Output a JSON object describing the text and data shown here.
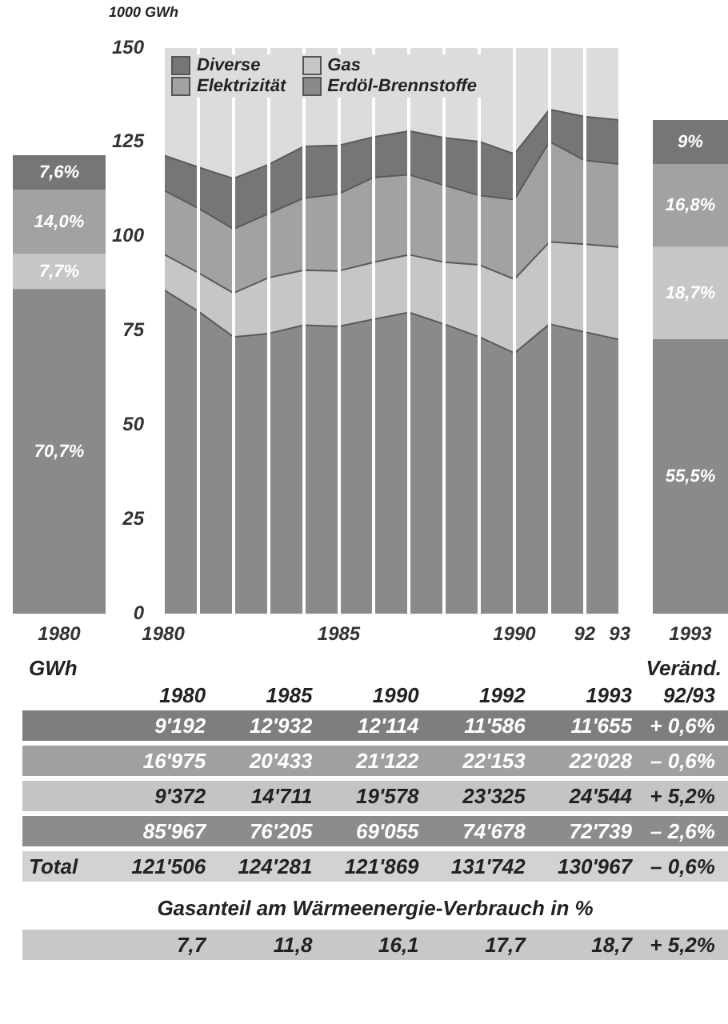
{
  "chart_data": [
    {
      "type": "bar",
      "stacked": true,
      "categories": [
        "1980"
      ],
      "tick_labels": "x",
      "series": [
        {
          "color": "#8a8a8a",
          "values": [
            70.7
          ],
          "value_labels": [
            "70,7%"
          ]
        },
        {
          "color": "#c6c6c6",
          "values": [
            7.7
          ],
          "value_labels": [
            "7,7%"
          ]
        },
        {
          "color": "#a2a2a2",
          "values": [
            14.0
          ],
          "value_labels": [
            "14,0%"
          ]
        },
        {
          "color": "#767676",
          "values": [
            7.6
          ],
          "value_labels": [
            "7,6%"
          ]
        }
      ]
    },
    {
      "type": "area",
      "stacked": true,
      "ylabel": "1000 GWh",
      "legend": "top left",
      "grid": "x",
      "x": [
        1980,
        1981,
        1982,
        1983,
        1984,
        1985,
        1986,
        1987,
        1988,
        1989,
        1990,
        1991,
        1992,
        1993
      ],
      "xlim": [
        1980,
        1993
      ],
      "xticks": [
        1980,
        {
          "value": 1981,
          "label": null
        },
        {
          "value": 1982,
          "label": null
        },
        {
          "value": 1983,
          "label": null
        },
        {
          "value": 1984,
          "label": null
        },
        1985,
        {
          "value": 1986,
          "label": null
        },
        {
          "value": 1987,
          "label": null
        },
        {
          "value": 1988,
          "label": null
        },
        {
          "value": 1989,
          "label": null
        },
        1990,
        {
          "value": 1991,
          "label": null
        },
        {
          "value": 1992,
          "label": "92"
        },
        {
          "value": 1993,
          "label": "93"
        }
      ],
      "ylim": [
        0,
        150
      ],
      "yticks": [
        0,
        25,
        50,
        75,
        100,
        125,
        150
      ],
      "series": [
        {
          "name": "Erdöl-Brennstoffe",
          "color": "#8a8a8a",
          "values": [
            86.0,
            80.2,
            73.4,
            74.3,
            76.5,
            76.2,
            78.1,
            79.9,
            76.8,
            73.4,
            69.1,
            76.8,
            74.7,
            72.7
          ]
        },
        {
          "name": "Gas",
          "color": "#c6c6c6",
          "values": [
            9.4,
            10.2,
            11.6,
            14.8,
            14.6,
            14.7,
            15.1,
            15.3,
            16.4,
            19.1,
            19.6,
            21.8,
            23.3,
            24.5
          ]
        },
        {
          "name": "Elektrizität",
          "color": "#a2a2a2",
          "values": [
            17.0,
            17.1,
            17.0,
            17.0,
            19.1,
            20.4,
            22.5,
            21.2,
            20.4,
            18.4,
            21.1,
            26.6,
            22.2,
            22.0
          ]
        },
        {
          "name": "Diverse",
          "color": "#767676",
          "values": [
            9.2,
            10.9,
            13.4,
            13.0,
            13.7,
            12.9,
            10.7,
            11.6,
            12.6,
            14.3,
            12.1,
            8.5,
            11.6,
            11.7
          ]
        }
      ]
    },
    {
      "type": "bar",
      "stacked": true,
      "categories": [
        "1993"
      ],
      "tick_labels": "x",
      "series": [
        {
          "color": "#8a8a8a",
          "values": [
            55.5
          ],
          "value_labels": [
            "55,5%"
          ]
        },
        {
          "color": "#c6c6c6",
          "values": [
            18.7
          ],
          "value_labels": [
            "18,7%"
          ]
        },
        {
          "color": "#a2a2a2",
          "values": [
            16.8
          ],
          "value_labels": [
            "16,8%"
          ]
        },
        {
          "color": "#767676",
          "values": [
            9
          ],
          "value_labels": [
            "9%"
          ]
        }
      ]
    },
    {
      "type": "other",
      "title": "GWh",
      "annotations": [
        "Veränd.",
        "Gasanteil am Wärmeenergie-Verbrauch in %"
      ],
      "categories": [
        "1980",
        "1985",
        "1990",
        "1992",
        "1993",
        "92/93"
      ],
      "y_categories": [
        null,
        null,
        null,
        null,
        "Total",
        null
      ],
      "colors": [
        "#7e7e7e",
        "#a0a0a0",
        "#c4c4c4",
        "#8c8c8c",
        "#d2d2d2",
        "#c8c8c8"
      ],
      "cell_labels": [
        [
          "9'192",
          "12'932",
          "12'114",
          "11'586",
          "11'655",
          "+ 0,6%"
        ],
        [
          "16'975",
          "20'433",
          "21'122",
          "22'153",
          "22'028",
          "– 0,6%"
        ],
        [
          "9'372",
          "14'711",
          "19'578",
          "23'325",
          "24'544",
          "+ 5,2%"
        ],
        [
          "85'967",
          "76'205",
          "69'055",
          "74'678",
          "72'739",
          "– 2,6%"
        ],
        [
          "121'506",
          "124'281",
          "121'869",
          "131'742",
          "130'967",
          "– 0,6%"
        ],
        [
          "7,7",
          "11,8",
          "16,1",
          "17,7",
          "18,7",
          "+ 5,2%"
        ]
      ]
    }
  ]
}
